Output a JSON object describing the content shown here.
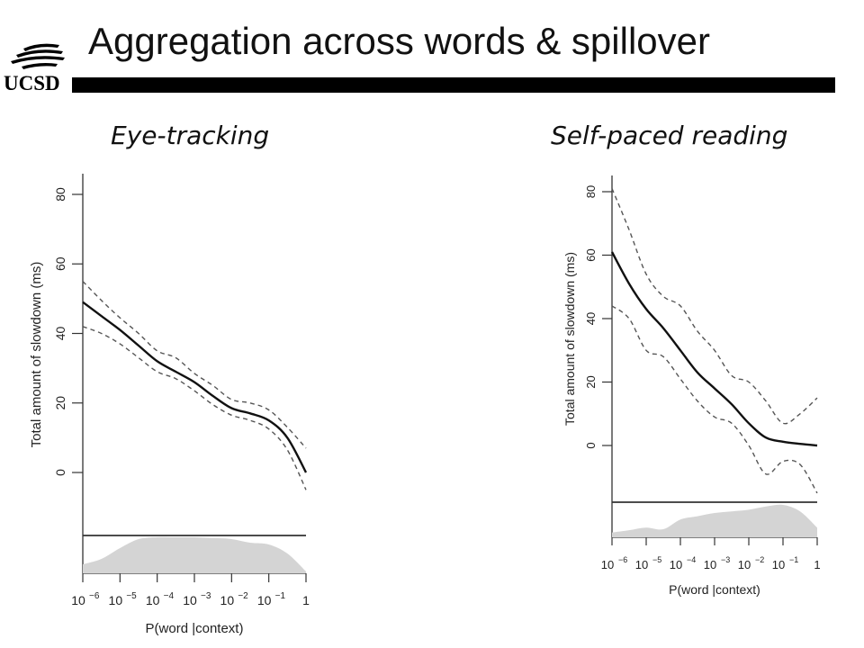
{
  "slide": {
    "title": "Aggregation across words & spillover",
    "logo": {
      "text": "UCSD",
      "icon": "ucsd-wave-logo-icon"
    }
  },
  "chart_data": [
    {
      "type": "line",
      "title": "Eye-tracking",
      "xlabel": "P(word |context)",
      "ylabel": "Total amount of slowdown (ms)",
      "x_scale": "log10",
      "xlim": [
        -6,
        0
      ],
      "ylim": [
        -15,
        80
      ],
      "x_ticks": [
        -6,
        -5,
        -4,
        -3,
        -2,
        -1,
        0
      ],
      "x_tick_labels": [
        "10",
        "10",
        "10",
        "10",
        "10",
        "10",
        "1"
      ],
      "x_tick_exponents": [
        "−6",
        "−5",
        "−4",
        "−3",
        "−2",
        "−1",
        ""
      ],
      "y_ticks": [
        0,
        20,
        40,
        60,
        80
      ],
      "y_tick_labels": [
        "0",
        "20",
        "40",
        "60",
        "80"
      ],
      "grid": false,
      "series": [
        {
          "style": "solid",
          "x": [
            -6,
            -5.5,
            -5,
            -4.5,
            -4,
            -3.5,
            -3,
            -2.5,
            -2,
            -1.5,
            -1,
            -0.5,
            0
          ],
          "y": [
            49,
            45,
            41,
            36.5,
            32,
            29,
            26,
            22,
            18.5,
            17,
            15,
            10,
            0
          ]
        },
        {
          "style": "dashed",
          "x": [
            -6,
            -5.5,
            -5,
            -4.5,
            -4,
            -3.5,
            -3,
            -2.5,
            -2,
            -1.5,
            -1,
            -0.5,
            0
          ],
          "y": [
            55,
            49.5,
            44.5,
            40,
            35,
            33,
            28.5,
            25,
            21,
            20,
            18,
            13,
            7
          ]
        },
        {
          "style": "dashed",
          "x": [
            -6,
            -5.5,
            -5,
            -4.5,
            -4,
            -3.5,
            -3,
            -2.5,
            -2,
            -1.5,
            -1,
            -0.5,
            0
          ],
          "y": [
            42,
            40,
            37,
            33,
            29,
            27,
            23.5,
            19.5,
            16.5,
            15,
            12.5,
            6.5,
            -5
          ]
        }
      ],
      "density": {
        "x": [
          -6,
          -5.5,
          -5,
          -4.5,
          -4,
          -3.5,
          -3,
          -2.5,
          -2,
          -1.5,
          -1,
          -0.5,
          0
        ],
        "y": [
          0.25,
          0.4,
          0.7,
          0.95,
          1.0,
          1.0,
          1.0,
          0.98,
          0.95,
          0.85,
          0.8,
          0.55,
          0.05
        ]
      }
    },
    {
      "type": "line",
      "title": "Self-paced reading",
      "xlabel": "P(word |context)",
      "ylabel": "Total amount of slowdown (ms)",
      "x_scale": "log10",
      "xlim": [
        -6,
        0
      ],
      "ylim": [
        -15,
        80
      ],
      "x_ticks": [
        -6,
        -5,
        -4,
        -3,
        -2,
        -1,
        0
      ],
      "x_tick_labels": [
        "10",
        "10",
        "10",
        "10",
        "10",
        "10",
        "1"
      ],
      "x_tick_exponents": [
        "−6",
        "−5",
        "−4",
        "−3",
        "−2",
        "−1",
        ""
      ],
      "y_ticks": [
        0,
        20,
        40,
        60,
        80
      ],
      "y_tick_labels": [
        "0",
        "20",
        "40",
        "60",
        "80"
      ],
      "grid": false,
      "series": [
        {
          "style": "solid",
          "x": [
            -6,
            -5.5,
            -5,
            -4.5,
            -4,
            -3.5,
            -3,
            -2.5,
            -2,
            -1.5,
            -1,
            -0.5,
            0
          ],
          "y": [
            61,
            51,
            43,
            37,
            30,
            23,
            18,
            13,
            7,
            2.5,
            1.2,
            0.5,
            0
          ]
        },
        {
          "style": "dashed",
          "x": [
            -6,
            -5.5,
            -5,
            -4.5,
            -4,
            -3.5,
            -3,
            -2.5,
            -2,
            -1.5,
            -1,
            -0.5,
            0
          ],
          "y": [
            81,
            68,
            54,
            47,
            44,
            36,
            30,
            22,
            20,
            14,
            7,
            10,
            15
          ]
        },
        {
          "style": "dashed",
          "x": [
            -6,
            -5.5,
            -5,
            -4.5,
            -4,
            -3.5,
            -3,
            -2.5,
            -2,
            -1.5,
            -1,
            -0.5,
            0
          ],
          "y": [
            44,
            40,
            30,
            28,
            21,
            14,
            9,
            7,
            0,
            -9,
            -5,
            -6,
            -15
          ]
        }
      ],
      "density": {
        "x": [
          -6,
          -5.5,
          -5,
          -4.5,
          -4,
          -3.5,
          -3,
          -2.5,
          -2,
          -1.5,
          -1,
          -0.5,
          0
        ],
        "y": [
          0.15,
          0.22,
          0.3,
          0.25,
          0.55,
          0.65,
          0.75,
          0.8,
          0.85,
          0.95,
          1.0,
          0.8,
          0.3
        ]
      }
    }
  ]
}
